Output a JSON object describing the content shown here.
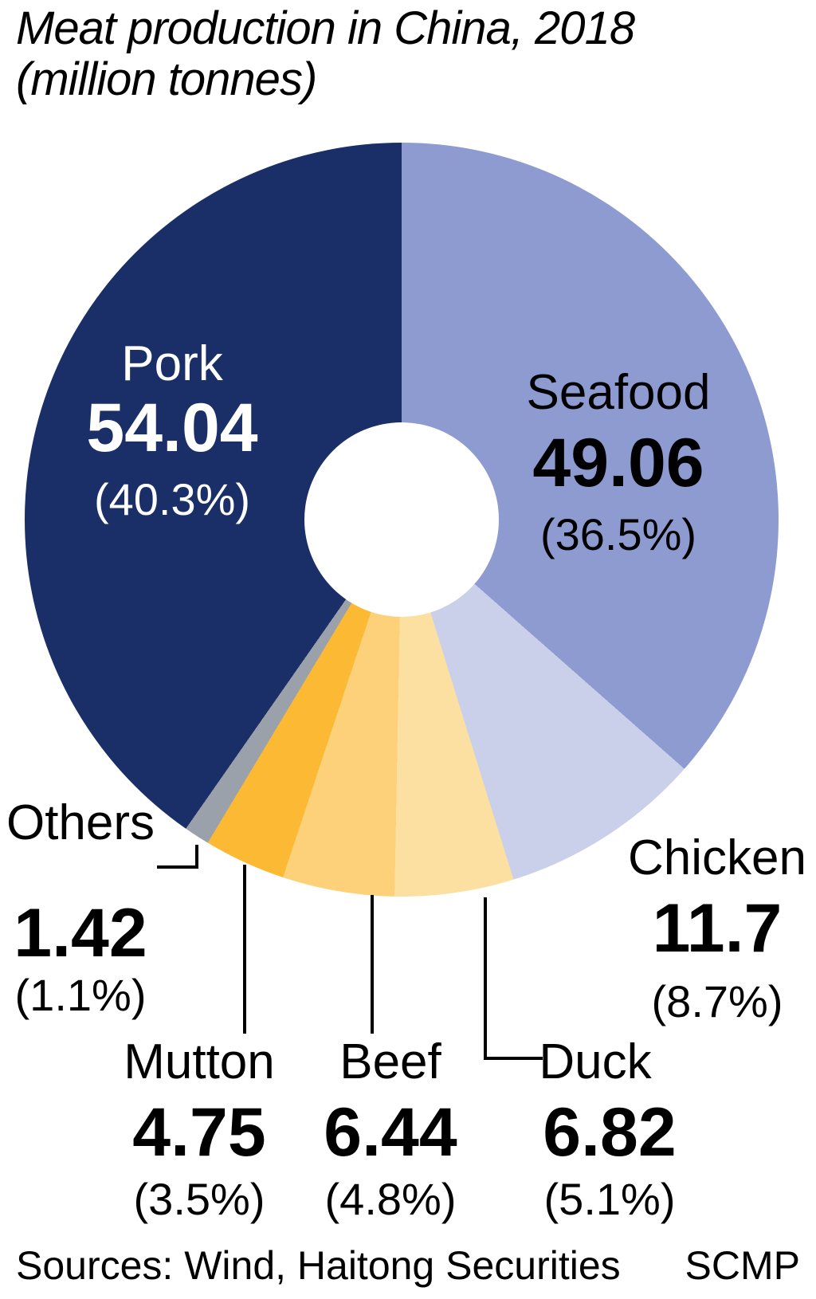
{
  "title": {
    "line1": "Meat production in China, 2018",
    "line2": "(million tonnes)"
  },
  "source": {
    "label": "Sources: Wind, Haitong Securities",
    "credit": "SCMP"
  },
  "chart_data": {
    "type": "pie",
    "donut": true,
    "title": "Meat production in China, 2018 (million tonnes)",
    "unit": "million tonnes",
    "start_angle_deg": 0,
    "direction": "clockwise",
    "hole_color": "#ffffff",
    "segments": [
      {
        "label": "Seafood",
        "value": 49.06,
        "value_label": "49.06",
        "pct": 36.5,
        "pct_label": "(36.5%)",
        "color": "#8e9bd1",
        "text_color": "#000000"
      },
      {
        "label": "Chicken",
        "value": 11.7,
        "value_label": "11.7",
        "pct": 8.7,
        "pct_label": "(8.7%)",
        "color": "#cacfea",
        "text_color": "#000000"
      },
      {
        "label": "Duck",
        "value": 6.82,
        "value_label": "6.82",
        "pct": 5.1,
        "pct_label": "(5.1%)",
        "color": "#fce0a1",
        "text_color": "#000000"
      },
      {
        "label": "Beef",
        "value": 6.44,
        "value_label": "6.44",
        "pct": 4.8,
        "pct_label": "(4.8%)",
        "color": "#fcd17a",
        "text_color": "#000000"
      },
      {
        "label": "Mutton",
        "value": 4.75,
        "value_label": "4.75",
        "pct": 3.5,
        "pct_label": "(3.5%)",
        "color": "#fcb934",
        "text_color": "#000000"
      },
      {
        "label": "Others",
        "value": 1.42,
        "value_label": "1.42",
        "pct": 1.1,
        "pct_label": "(1.1%)",
        "color": "#9ba1aa",
        "text_color": "#000000"
      },
      {
        "label": "Pork",
        "value": 54.04,
        "value_label": "54.04",
        "pct": 40.3,
        "pct_label": "(40.3%)",
        "color": "#1a2f68",
        "text_color": "#ffffff"
      }
    ]
  }
}
